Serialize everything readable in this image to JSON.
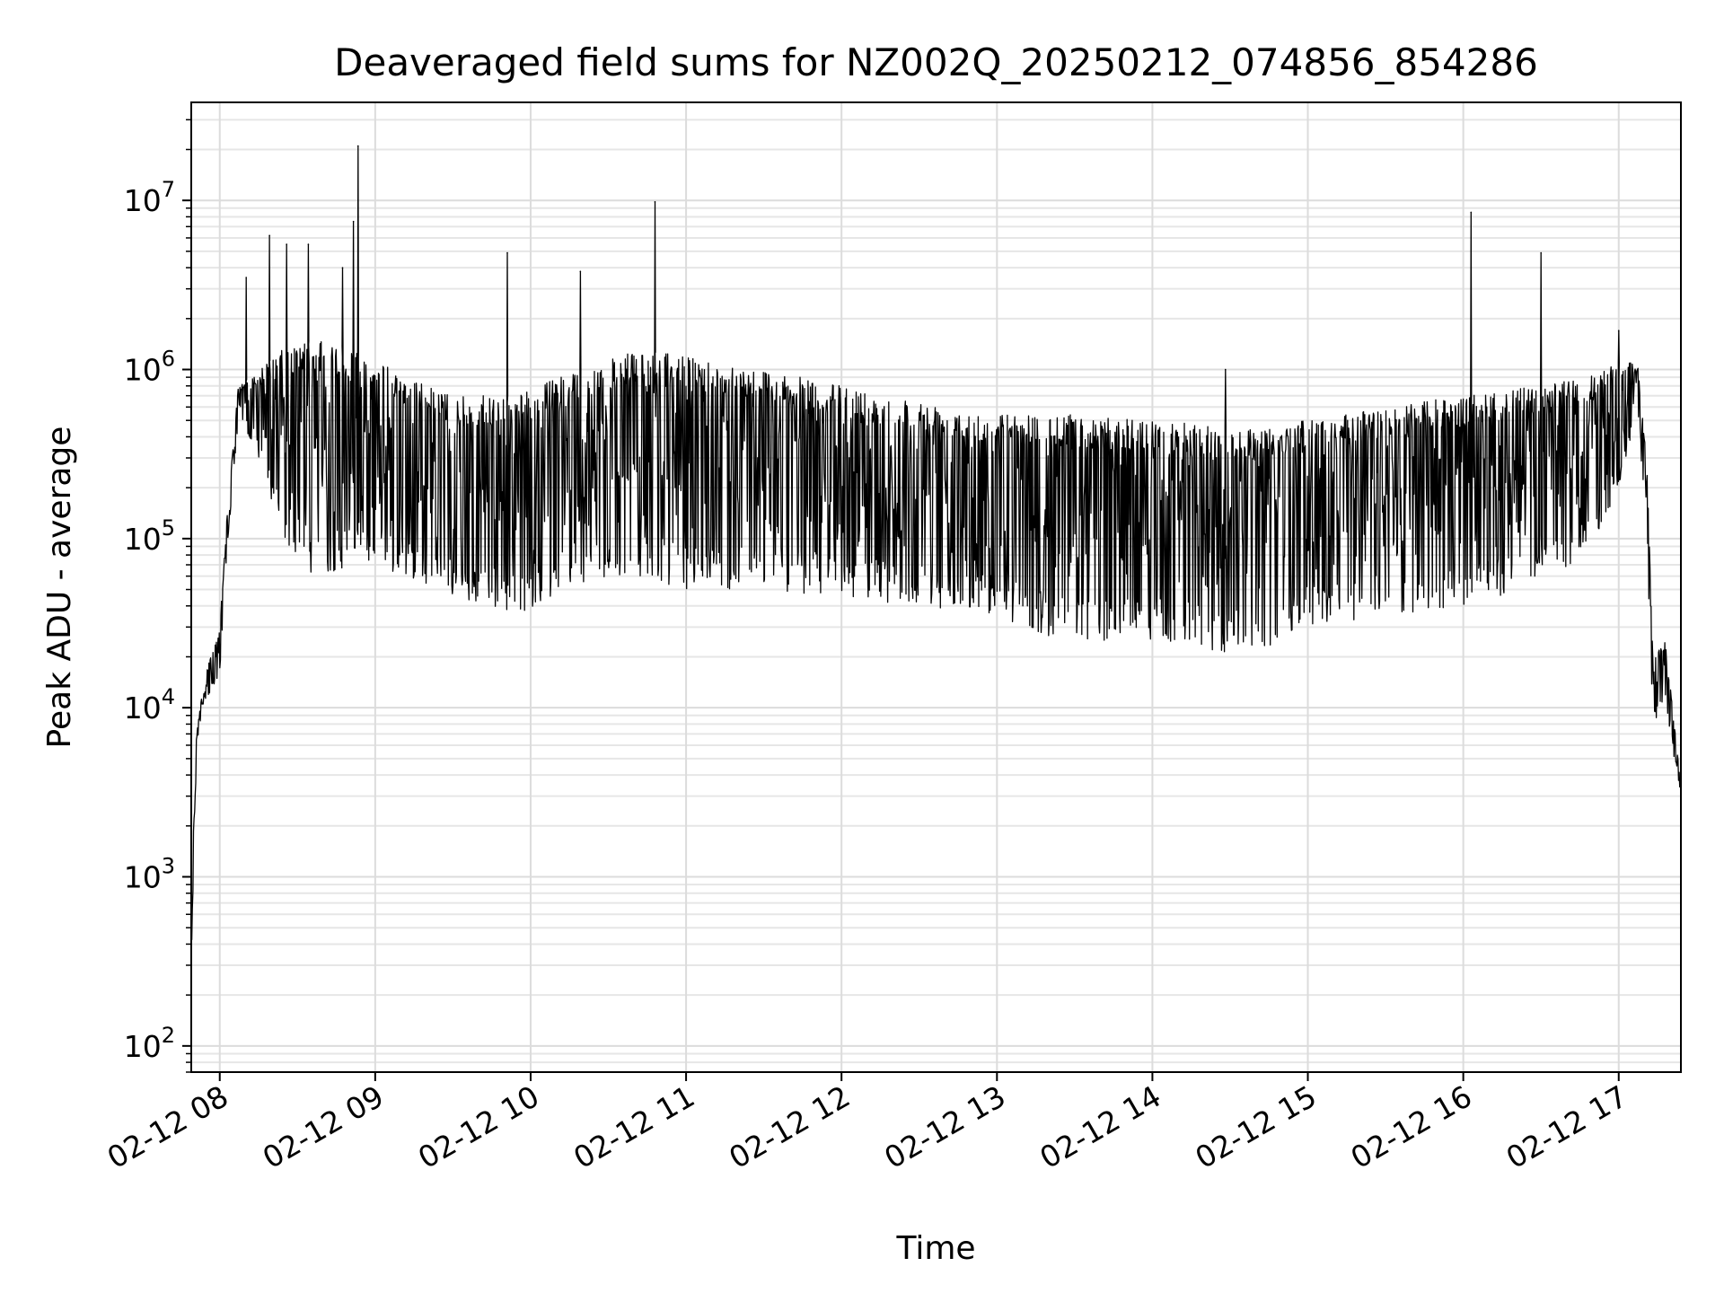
{
  "chart_data": {
    "type": "line",
    "title": "Deaveraged field sums for NZ002Q_20250212_074856_854286",
    "xlabel": "Time",
    "ylabel": "Peak ADU - average",
    "yscale": "log",
    "ylim": [
      70,
      38000000
    ],
    "xlim": [
      "02-12 07:49",
      "02-12 17:24"
    ],
    "grid": true,
    "grid_minor": true,
    "line_color": "#000000",
    "x_ticks": [
      {
        "value": "02-12 08:00",
        "label": "02-12 08"
      },
      {
        "value": "02-12 09:00",
        "label": "02-12 09"
      },
      {
        "value": "02-12 10:00",
        "label": "02-12 10"
      },
      {
        "value": "02-12 11:00",
        "label": "02-12 11"
      },
      {
        "value": "02-12 12:00",
        "label": "02-12 12"
      },
      {
        "value": "02-12 13:00",
        "label": "02-12 13"
      },
      {
        "value": "02-12 14:00",
        "label": "02-12 14"
      },
      {
        "value": "02-12 15:00",
        "label": "02-12 15"
      },
      {
        "value": "02-12 16:00",
        "label": "02-12 16"
      },
      {
        "value": "02-12 17:00",
        "label": "02-12 17"
      }
    ],
    "y_ticks": [
      {
        "value": 100,
        "base": "10",
        "exp": "2"
      },
      {
        "value": 1000,
        "base": "10",
        "exp": "3"
      },
      {
        "value": 10000,
        "base": "10",
        "exp": "4"
      },
      {
        "value": 100000,
        "base": "10",
        "exp": "5"
      },
      {
        "value": 1000000,
        "base": "10",
        "exp": "6"
      },
      {
        "value": 10000000,
        "base": "10",
        "exp": "7"
      }
    ],
    "envelope": {
      "description_units": "x in hours of day (02-12), upper/lower in ADU",
      "points": [
        {
          "x": 7.82,
          "upper": 1000,
          "lower": 400
        },
        {
          "x": 7.85,
          "upper": 7000,
          "lower": 5000
        },
        {
          "x": 7.9,
          "upper": 15000,
          "lower": 11000
        },
        {
          "x": 8.0,
          "upper": 30000,
          "lower": 15000
        },
        {
          "x": 8.05,
          "upper": 150000,
          "lower": 90000
        },
        {
          "x": 8.12,
          "upper": 800000,
          "lower": 500000
        },
        {
          "x": 8.25,
          "upper": 1000000,
          "lower": 300000
        },
        {
          "x": 8.4,
          "upper": 1300000,
          "lower": 100000
        },
        {
          "x": 8.6,
          "upper": 1500000,
          "lower": 60000
        },
        {
          "x": 8.9,
          "upper": 1300000,
          "lower": 70000
        },
        {
          "x": 9.2,
          "upper": 900000,
          "lower": 60000
        },
        {
          "x": 9.5,
          "upper": 700000,
          "lower": 45000
        },
        {
          "x": 9.9,
          "upper": 700000,
          "lower": 35000
        },
        {
          "x": 10.3,
          "upper": 1000000,
          "lower": 55000
        },
        {
          "x": 10.7,
          "upper": 1300000,
          "lower": 60000
        },
        {
          "x": 11.0,
          "upper": 1200000,
          "lower": 50000
        },
        {
          "x": 11.5,
          "upper": 1000000,
          "lower": 50000
        },
        {
          "x": 12.0,
          "upper": 800000,
          "lower": 45000
        },
        {
          "x": 12.5,
          "upper": 650000,
          "lower": 40000
        },
        {
          "x": 13.0,
          "upper": 550000,
          "lower": 35000
        },
        {
          "x": 13.4,
          "upper": 550000,
          "lower": 25000
        },
        {
          "x": 14.0,
          "upper": 500000,
          "lower": 25000
        },
        {
          "x": 14.6,
          "upper": 450000,
          "lower": 20000
        },
        {
          "x": 15.0,
          "upper": 500000,
          "lower": 30000
        },
        {
          "x": 15.5,
          "upper": 600000,
          "lower": 35000
        },
        {
          "x": 16.0,
          "upper": 700000,
          "lower": 40000
        },
        {
          "x": 16.5,
          "upper": 800000,
          "lower": 50000
        },
        {
          "x": 16.8,
          "upper": 900000,
          "lower": 80000
        },
        {
          "x": 17.0,
          "upper": 1100000,
          "lower": 200000
        },
        {
          "x": 17.12,
          "upper": 1100000,
          "lower": 500000
        },
        {
          "x": 17.18,
          "upper": 300000,
          "lower": 100000
        },
        {
          "x": 17.22,
          "upper": 20000,
          "lower": 8000
        },
        {
          "x": 17.3,
          "upper": 25000,
          "lower": 10000
        },
        {
          "x": 17.4,
          "upper": 3500,
          "lower": 3000
        }
      ]
    },
    "spikes": [
      {
        "x": 8.17,
        "y": 3500000
      },
      {
        "x": 8.32,
        "y": 6200000
      },
      {
        "x": 8.43,
        "y": 5500000
      },
      {
        "x": 8.57,
        "y": 5500000
      },
      {
        "x": 8.79,
        "y": 4000000
      },
      {
        "x": 8.86,
        "y": 7500000
      },
      {
        "x": 8.89,
        "y": 21000000
      },
      {
        "x": 9.85,
        "y": 4900000
      },
      {
        "x": 10.32,
        "y": 3800000
      },
      {
        "x": 10.8,
        "y": 9800000
      },
      {
        "x": 14.47,
        "y": 1000000
      },
      {
        "x": 16.05,
        "y": 8500000
      },
      {
        "x": 16.5,
        "y": 4900000
      },
      {
        "x": 17.0,
        "y": 1700000
      }
    ]
  }
}
